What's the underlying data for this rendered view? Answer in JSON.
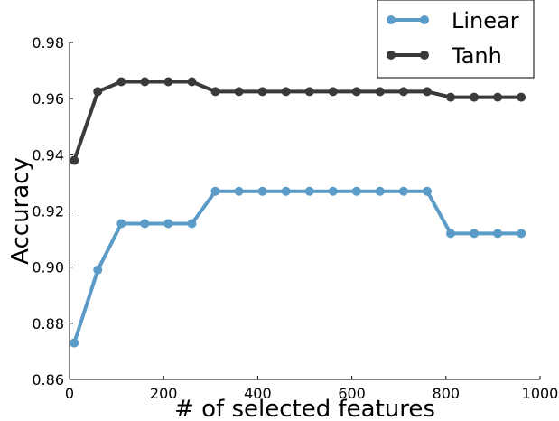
{
  "chart_data": {
    "type": "line",
    "title": "",
    "xlabel": "# of selected features",
    "ylabel": "Accuracy",
    "xlim": [
      0,
      1000
    ],
    "ylim": [
      0.86,
      0.98
    ],
    "x_ticks": [
      0,
      200,
      400,
      600,
      800,
      1000
    ],
    "x_tick_labels": [
      "0",
      "200",
      "400",
      "600",
      "800",
      "1000"
    ],
    "y_ticks": [
      0.86,
      0.88,
      0.9,
      0.92,
      0.94,
      0.96,
      0.98
    ],
    "y_tick_labels": [
      "0.86",
      "0.88",
      "0.90",
      "0.92",
      "0.94",
      "0.96",
      "0.98"
    ],
    "grid": false,
    "legend_position": "top-right",
    "x": [
      10,
      60,
      110,
      160,
      210,
      260,
      310,
      360,
      410,
      460,
      510,
      560,
      610,
      660,
      710,
      760,
      810,
      860,
      910,
      960
    ],
    "series": [
      {
        "name": "Linear",
        "color": "#5b9bc8",
        "values": [
          0.873,
          0.899,
          0.9155,
          0.9155,
          0.9155,
          0.9155,
          0.927,
          0.927,
          0.927,
          0.927,
          0.927,
          0.927,
          0.927,
          0.927,
          0.927,
          0.927,
          0.912,
          0.912,
          0.912,
          0.912
        ]
      },
      {
        "name": "Tanh",
        "color": "#3a3a3a",
        "values": [
          0.938,
          0.9625,
          0.966,
          0.966,
          0.966,
          0.966,
          0.9625,
          0.9625,
          0.9625,
          0.9625,
          0.9625,
          0.9625,
          0.9625,
          0.9625,
          0.9625,
          0.9625,
          0.9605,
          0.9605,
          0.9605,
          0.9605
        ]
      }
    ]
  }
}
